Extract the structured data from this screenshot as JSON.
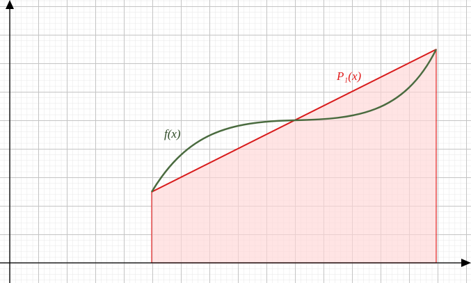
{
  "labels": {
    "f": "f(x)",
    "p1": "P₁(x)"
  }
}
